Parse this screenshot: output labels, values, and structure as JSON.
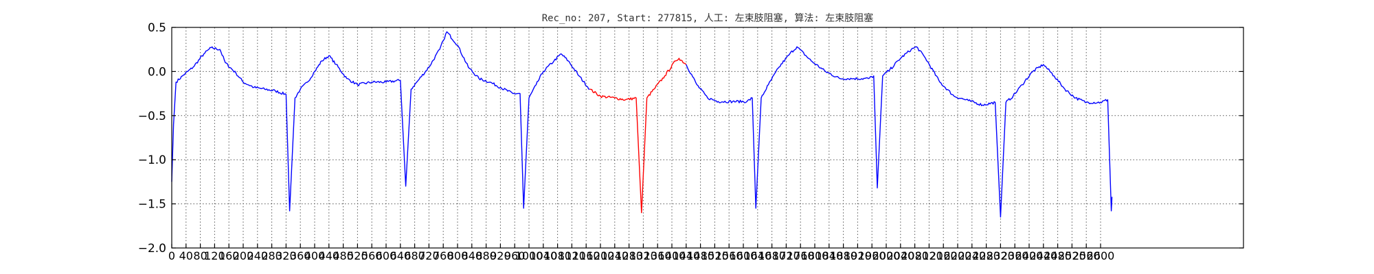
{
  "chart_data": {
    "type": "line",
    "title": "Rec_no: 207, Start: 277815, 人工: 左束肢阻塞, 算法: 左束肢阻塞",
    "xlabel": "",
    "ylabel": "",
    "xlim": [
      0,
      3000
    ],
    "ylim": [
      -2.0,
      0.5
    ],
    "yticks": [
      0.5,
      0.0,
      -0.5,
      -1.0,
      -1.5,
      -2.0
    ],
    "ytick_labels": [
      "0.5",
      "0.0",
      "−0.5",
      "−1.0",
      "−1.5",
      "−2.0"
    ],
    "xtick_step": 40,
    "xtick_labels": [
      "0",
      "40",
      "80",
      "120",
      "160",
      "200",
      "240",
      "280",
      "320",
      "360",
      "400",
      "440",
      "480",
      "520",
      "560",
      "600",
      "640",
      "680",
      "720",
      "760",
      "800",
      "840",
      "880",
      "920",
      "960",
      "1000",
      "1040",
      "1080",
      "1120",
      "1160",
      "1200",
      "1240",
      "1280",
      "1320",
      "1360",
      "1400",
      "1440",
      "1480",
      "1520",
      "1560",
      "1600",
      "1640",
      "1680",
      "1720",
      "1760",
      "1800",
      "1840",
      "1880",
      "1920",
      "1960",
      "2000",
      "2040",
      "2080",
      "2120",
      "2160",
      "2200",
      "2240",
      "2280",
      "2320",
      "2360",
      "2400",
      "2440",
      "2480",
      "2520",
      "2560",
      "2600"
    ],
    "grid": true,
    "colors": {
      "normal": "#0000ff",
      "highlight": "#ff0000"
    },
    "highlight_x_range": [
      1190,
      1450
    ],
    "beat_r_x": [
      330,
      655,
      985,
      1315,
      1635,
      1975,
      2320,
      2630
    ],
    "series": [
      {
        "values": [
          [
            0,
            -1.25
          ],
          [
            5,
            -0.6
          ],
          [
            12,
            -0.12
          ],
          [
            30,
            -0.05
          ],
          [
            60,
            0.05
          ],
          [
            90,
            0.2
          ],
          [
            110,
            0.27
          ],
          [
            135,
            0.25
          ],
          [
            150,
            0.1
          ],
          [
            180,
            -0.02
          ],
          [
            200,
            -0.12
          ],
          [
            230,
            -0.18
          ],
          [
            260,
            -0.2
          ],
          [
            290,
            -0.22
          ],
          [
            320,
            -0.26
          ],
          [
            330,
            -1.58
          ],
          [
            345,
            -0.3
          ],
          [
            360,
            -0.2
          ],
          [
            380,
            -0.12
          ],
          [
            400,
            0.0
          ],
          [
            420,
            0.12
          ],
          [
            440,
            0.18
          ],
          [
            460,
            0.08
          ],
          [
            490,
            -0.08
          ],
          [
            520,
            -0.15
          ],
          [
            560,
            -0.12
          ],
          [
            600,
            -0.12
          ],
          [
            640,
            -0.1
          ],
          [
            655,
            -1.3
          ],
          [
            670,
            -0.2
          ],
          [
            690,
            -0.1
          ],
          [
            720,
            0.05
          ],
          [
            750,
            0.25
          ],
          [
            760,
            0.35
          ],
          [
            770,
            0.45
          ],
          [
            800,
            0.3
          ],
          [
            830,
            0.05
          ],
          [
            860,
            -0.08
          ],
          [
            890,
            -0.12
          ],
          [
            920,
            -0.18
          ],
          [
            955,
            -0.25
          ],
          [
            975,
            -0.25
          ],
          [
            985,
            -1.55
          ],
          [
            1000,
            -0.3
          ],
          [
            1020,
            -0.15
          ],
          [
            1040,
            0.0
          ],
          [
            1070,
            0.12
          ],
          [
            1090,
            0.2
          ],
          [
            1110,
            0.12
          ],
          [
            1140,
            -0.05
          ],
          [
            1170,
            -0.2
          ],
          [
            1200,
            -0.28
          ],
          [
            1240,
            -0.3
          ],
          [
            1270,
            -0.32
          ],
          [
            1300,
            -0.3
          ],
          [
            1315,
            -1.6
          ],
          [
            1330,
            -0.3
          ],
          [
            1350,
            -0.2
          ],
          [
            1380,
            -0.05
          ],
          [
            1410,
            0.12
          ],
          [
            1420,
            0.15
          ],
          [
            1440,
            0.08
          ],
          [
            1470,
            -0.15
          ],
          [
            1500,
            -0.3
          ],
          [
            1530,
            -0.34
          ],
          [
            1570,
            -0.34
          ],
          [
            1610,
            -0.34
          ],
          [
            1625,
            -0.3
          ],
          [
            1635,
            -1.55
          ],
          [
            1650,
            -0.3
          ],
          [
            1670,
            -0.15
          ],
          [
            1700,
            0.05
          ],
          [
            1730,
            0.2
          ],
          [
            1750,
            0.28
          ],
          [
            1790,
            0.12
          ],
          [
            1830,
            0.0
          ],
          [
            1870,
            -0.08
          ],
          [
            1910,
            -0.08
          ],
          [
            1950,
            -0.08
          ],
          [
            1965,
            -0.05
          ],
          [
            1975,
            -1.32
          ],
          [
            1990,
            -0.05
          ],
          [
            2010,
            0.02
          ],
          [
            2040,
            0.15
          ],
          [
            2070,
            0.25
          ],
          [
            2085,
            0.28
          ],
          [
            2110,
            0.15
          ],
          [
            2150,
            -0.12
          ],
          [
            2190,
            -0.28
          ],
          [
            2230,
            -0.33
          ],
          [
            2270,
            -0.38
          ],
          [
            2305,
            -0.35
          ],
          [
            2320,
            -1.65
          ],
          [
            2335,
            -0.35
          ],
          [
            2355,
            -0.28
          ],
          [
            2380,
            -0.15
          ],
          [
            2410,
            0.0
          ],
          [
            2440,
            0.08
          ],
          [
            2470,
            -0.05
          ],
          [
            2500,
            -0.2
          ],
          [
            2530,
            -0.3
          ],
          [
            2560,
            -0.35
          ],
          [
            2600,
            -0.35
          ],
          [
            2620,
            -0.32
          ],
          [
            2630,
            -1.58
          ],
          [
            2632,
            -1.42
          ]
        ]
      }
    ]
  }
}
